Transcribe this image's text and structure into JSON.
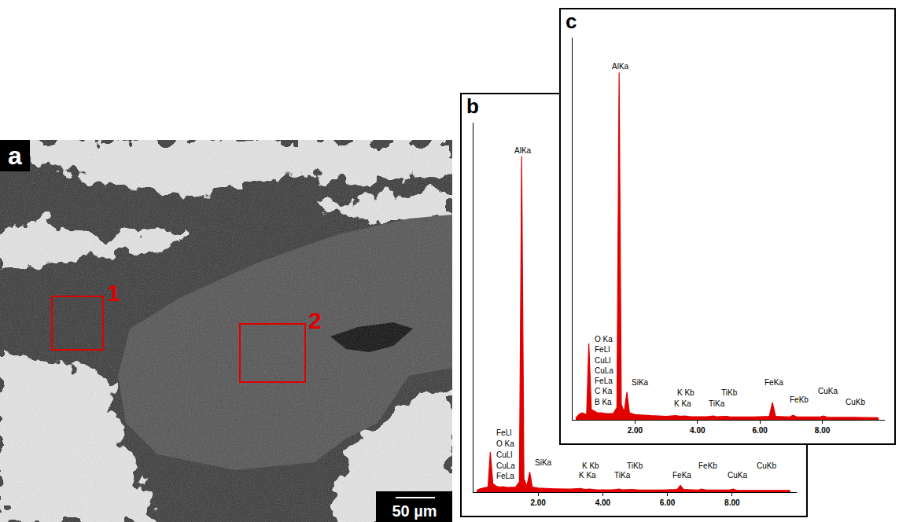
{
  "micrograph": {
    "panel": "a",
    "regions": [
      "1",
      "2"
    ],
    "scale_bar": "50 µm"
  },
  "chart_data": [
    {
      "panel": "b",
      "type": "area",
      "color": "#e00000",
      "x": [
        0.1,
        0.2,
        0.3,
        0.45,
        0.52,
        0.6,
        0.7,
        0.8,
        0.93,
        1.05,
        1.3,
        1.42,
        1.49,
        1.56,
        1.65,
        1.74,
        1.82,
        2.0,
        2.5,
        3.0,
        3.31,
        3.45,
        3.59,
        3.8,
        4.3,
        4.51,
        4.6,
        4.93,
        5.1,
        5.8,
        6.3,
        6.4,
        6.5,
        6.95,
        7.06,
        7.2,
        7.9,
        8.04,
        8.15,
        8.8,
        8.9,
        9.0,
        9.8
      ],
      "values": [
        0.5,
        1,
        1.2,
        1.5,
        12,
        2.5,
        1.8,
        1.5,
        1.6,
        1.4,
        1.5,
        3,
        100,
        4,
        1.8,
        6,
        1.5,
        1.2,
        1,
        0.9,
        1.1,
        0.8,
        0.9,
        0.7,
        0.7,
        0.9,
        0.7,
        0.8,
        0.6,
        0.6,
        0.8,
        2,
        0.8,
        0.6,
        0.9,
        0.6,
        0.6,
        0.9,
        0.5,
        0.5,
        0.6,
        0.5,
        0.5
      ],
      "xlim": [
        0,
        10
      ],
      "xticks": [
        {
          "value": 2,
          "label": "2.00"
        },
        {
          "value": 4,
          "label": "4.00"
        },
        {
          "value": 6,
          "label": "6.00"
        },
        {
          "value": 8,
          "label": "8.00"
        }
      ],
      "ylim": [
        0,
        110
      ],
      "tick_labels": "x",
      "annotations": [
        {
          "text": "AlKa",
          "x": 1.22,
          "y": 100
        },
        {
          "text": "FeLl",
          "x": 0.66,
          "y": 15.8
        },
        {
          "text": "O Ka",
          "x": 0.66,
          "y": 12.6
        },
        {
          "text": "CuLl",
          "x": 0.66,
          "y": 9.4
        },
        {
          "text": "CuLa",
          "x": 0.66,
          "y": 6.2
        },
        {
          "text": "FeLa",
          "x": 0.66,
          "y": 3
        },
        {
          "text": "SiKa",
          "x": 1.85,
          "y": 7
        },
        {
          "text": "K Kb",
          "x": 3.3,
          "y": 6
        },
        {
          "text": "K Ka",
          "x": 3.2,
          "y": 3.2
        },
        {
          "text": "TiKb",
          "x": 4.7,
          "y": 6
        },
        {
          "text": "TiKa",
          "x": 4.3,
          "y": 3.2
        },
        {
          "text": "FeKb",
          "x": 6.9,
          "y": 6
        },
        {
          "text": "FeKa",
          "x": 6.1,
          "y": 3.2
        },
        {
          "text": "CuKa",
          "x": 7.8,
          "y": 3.2
        },
        {
          "text": "CuKb",
          "x": 8.7,
          "y": 6
        }
      ]
    },
    {
      "panel": "c",
      "type": "area",
      "color": "#e00000",
      "x": [
        0.1,
        0.2,
        0.3,
        0.45,
        0.52,
        0.6,
        0.7,
        0.8,
        0.93,
        1.05,
        1.3,
        1.42,
        1.49,
        1.56,
        1.65,
        1.74,
        1.82,
        2.0,
        2.5,
        3.0,
        3.31,
        3.45,
        3.59,
        3.8,
        4.3,
        4.51,
        4.6,
        4.93,
        5.1,
        5.8,
        6.3,
        6.4,
        6.5,
        6.95,
        7.06,
        7.2,
        7.9,
        8.04,
        8.15,
        8.8,
        8.9,
        9.0,
        9.8
      ],
      "values": [
        0.5,
        1.5,
        2,
        1.5,
        22,
        3,
        2.5,
        2,
        2,
        1.8,
        1.8,
        3.5,
        100,
        4.5,
        2.2,
        8,
        2,
        1.5,
        1.2,
        1,
        1.2,
        1,
        1.1,
        0.9,
        0.9,
        1.1,
        0.9,
        1,
        0.8,
        0.8,
        1,
        5,
        1,
        0.8,
        1.3,
        0.8,
        0.8,
        1.1,
        0.7,
        0.7,
        0.8,
        0.7,
        0.6
      ],
      "xlim": [
        0,
        10
      ],
      "xticks": [
        {
          "value": 2,
          "label": "2.00"
        },
        {
          "value": 4,
          "label": "4.00"
        },
        {
          "value": 6,
          "label": "6.00"
        },
        {
          "value": 8,
          "label": "8.00"
        }
      ],
      "ylim": [
        0,
        110
      ],
      "tick_labels": "x",
      "annotations": [
        {
          "text": "AlKa",
          "x": 1.22,
          "y": 100
        },
        {
          "text": "O Ka",
          "x": 0.66,
          "y": 21.5
        },
        {
          "text": "FeLl",
          "x": 0.66,
          "y": 18.5
        },
        {
          "text": "CuLl",
          "x": 0.66,
          "y": 15.5
        },
        {
          "text": "CuLa",
          "x": 0.66,
          "y": 12.5
        },
        {
          "text": "FeLa",
          "x": 0.66,
          "y": 9.5
        },
        {
          "text": "C Ka",
          "x": 0.66,
          "y": 6.5
        },
        {
          "text": "B Ka",
          "x": 0.66,
          "y": 3.5
        },
        {
          "text": "SiKa",
          "x": 1.85,
          "y": 9
        },
        {
          "text": "K Kb",
          "x": 3.3,
          "y": 6
        },
        {
          "text": "K Ka",
          "x": 3.2,
          "y": 3
        },
        {
          "text": "TiKb",
          "x": 4.7,
          "y": 6
        },
        {
          "text": "TiKa",
          "x": 4.3,
          "y": 3
        },
        {
          "text": "FeKa",
          "x": 6.1,
          "y": 9
        },
        {
          "text": "FeKb",
          "x": 6.9,
          "y": 4
        },
        {
          "text": "CuKa",
          "x": 7.8,
          "y": 6.5
        },
        {
          "text": "CuKb",
          "x": 8.7,
          "y": 3.5
        }
      ]
    }
  ]
}
